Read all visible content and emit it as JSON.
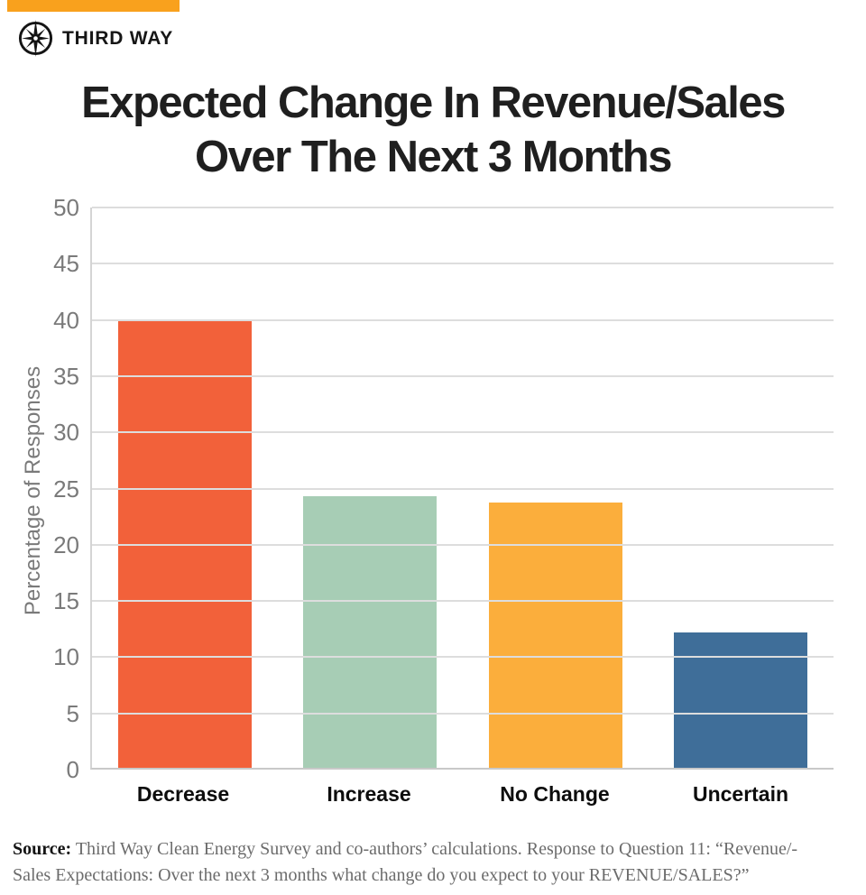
{
  "header": {
    "accent_bar_color": "#F9A11D",
    "brand": "THIRD WAY"
  },
  "title": {
    "line1": "Expected Change In Revenue/Sales",
    "line2": "Over The Next 3 Months"
  },
  "chart_data": {
    "type": "bar",
    "title": "Expected Change In Revenue/Sales Over The Next 3 Months",
    "categories": [
      "Decrease",
      "Increase",
      "No Change",
      "Uncertain"
    ],
    "values": [
      40,
      24.2,
      23.7,
      12.1
    ],
    "bar_colors": [
      "#F2613A",
      "#A7CDB5",
      "#FBAE3C",
      "#3F6E99"
    ],
    "xlabel": "",
    "ylabel": "Percentage of Responses",
    "ylim": [
      0,
      50
    ],
    "ytick_step": 5,
    "grid": true,
    "grid_color": "#DDDDDD",
    "axis_text_color": "#7A7A7A",
    "legend_position": "none"
  },
  "source": {
    "label": "Source:",
    "line1": "Third Way Clean Energy Survey and co-authors’ calculations. Response to Question 11: “Revenue/-",
    "line2": "Sales Expectations:  Over the next 3 months what change do you expect to your REVENUE/SALES?”"
  }
}
